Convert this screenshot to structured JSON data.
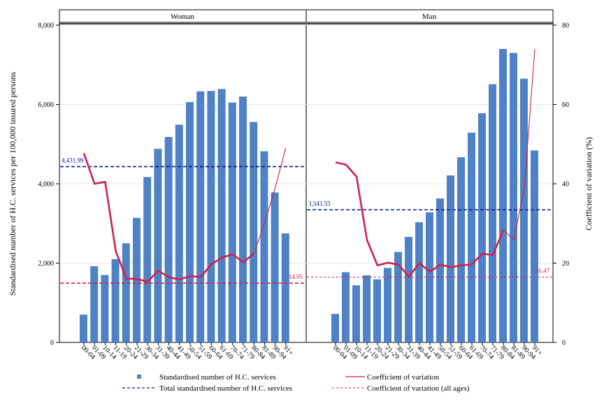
{
  "chart_data": {
    "type": "bar",
    "ylabel": "Standardised number of H.C. services per 100,000 insured persons",
    "y2label": "Coefficient of variation (%)",
    "ylim": [
      0,
      8000
    ],
    "y2lim": [
      0,
      80
    ],
    "yticks": [
      "0",
      "2,000",
      "4,000",
      "6,000",
      "8,000"
    ],
    "y2ticks": [
      "0",
      "20",
      "40",
      "60",
      "80"
    ],
    "categories": [
      "00-04",
      "01-09",
      "10-14",
      "11-19",
      "20-24",
      "21-29",
      "30-34",
      "31-39",
      "40-44",
      "41-49",
      "50-54",
      "51-59",
      "60-64",
      "61-69",
      "70-74",
      "71-79",
      "80-84",
      "81-89",
      "90-94",
      "91+"
    ],
    "panels": [
      {
        "title": "Woman",
        "bars": [
          700,
          1920,
          1700,
          2100,
          2500,
          3140,
          4170,
          4880,
          5180,
          5490,
          6060,
          6330,
          6340,
          6390,
          6050,
          6200,
          5560,
          4820,
          3780,
          2750
        ],
        "cv": [
          47.7,
          40.0,
          40.5,
          23.0,
          16.1,
          16.0,
          15.3,
          18.1,
          16.4,
          15.9,
          16.7,
          16.5,
          19.7,
          21.4,
          22.2,
          20.2,
          22.4,
          null,
          null,
          null
        ],
        "cv_tail": [
          null,
          null,
          null,
          null,
          null,
          null,
          null,
          null,
          null,
          null,
          null,
          null,
          null,
          null,
          null,
          null,
          22.4,
          30.0,
          39.0,
          49.0
        ],
        "total": 4431.99,
        "total_label": "4,431.99",
        "cv_all": 14.95,
        "cv_all_label": "14.95"
      },
      {
        "title": "Man",
        "bars": [
          720,
          1770,
          1440,
          1690,
          1590,
          1880,
          2280,
          2660,
          3030,
          3280,
          3630,
          4210,
          4670,
          5290,
          5780,
          6510,
          7400,
          7300,
          6650,
          4840
        ],
        "cv": [
          45.4,
          44.8,
          41.8,
          25.8,
          19.4,
          20.1,
          19.6,
          16.6,
          20.0,
          17.8,
          19.6,
          19.0,
          19.4,
          19.7,
          22.4,
          22.0,
          28.3,
          null,
          null,
          null
        ],
        "cv_tail": [
          null,
          null,
          null,
          null,
          null,
          null,
          null,
          null,
          null,
          null,
          null,
          null,
          null,
          null,
          null,
          null,
          28.3,
          25.9,
          39.0,
          74.0
        ],
        "total": 3343.55,
        "total_label": "3,343.55",
        "cv_all": 16.47,
        "cv_all_label": "16.47"
      }
    ],
    "colors": {
      "bar": "#4f81c7",
      "cv_line": "#d0204b",
      "total_line": "#0a1a8c",
      "cv_all_line": "#d0204b"
    },
    "legend": {
      "bars": "Standardised number of H.C. services",
      "cv": "Coefficient of variation",
      "total": "Total standardised number of H.C. services",
      "cv_all": "Coefficient of variation (all ages)"
    }
  }
}
